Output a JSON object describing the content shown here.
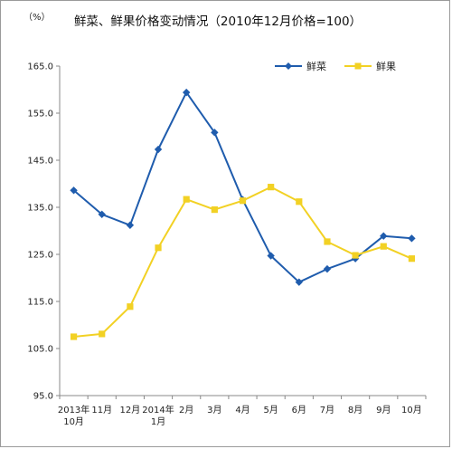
{
  "chart_data": {
    "type": "line",
    "title": "鲜菜、鲜果价格变动情况（2010年12月价格=100）",
    "unit_label": "（%）",
    "categories": [
      [
        "2013年",
        "10月"
      ],
      [
        "11月"
      ],
      [
        "12月"
      ],
      [
        "2014年",
        "1月"
      ],
      [
        "2月"
      ],
      [
        "3月"
      ],
      [
        "4月"
      ],
      [
        "5月"
      ],
      [
        "6月"
      ],
      [
        "7月"
      ],
      [
        "8月"
      ],
      [
        "9月"
      ],
      [
        "10月"
      ]
    ],
    "series": [
      {
        "name": "鲜菜",
        "color": "#1f5cad",
        "marker": "diamond",
        "values": [
          138.6,
          133.5,
          131.2,
          147.3,
          159.4,
          150.9,
          136.6,
          124.7,
          119.1,
          121.9,
          124.1,
          128.9,
          128.4
        ]
      },
      {
        "name": "鲜果",
        "color": "#f2d124",
        "marker": "square",
        "values": [
          107.5,
          108.1,
          113.9,
          126.4,
          136.7,
          134.5,
          136.4,
          139.3,
          136.2,
          127.7,
          124.8,
          126.7,
          124.1
        ]
      }
    ],
    "ylim": [
      95,
      165
    ],
    "yticks": [
      "95.0",
      "105.0",
      "115.0",
      "125.0",
      "135.0",
      "145.0",
      "155.0",
      "165.0"
    ],
    "legend_position": "top-right",
    "grid": false
  }
}
